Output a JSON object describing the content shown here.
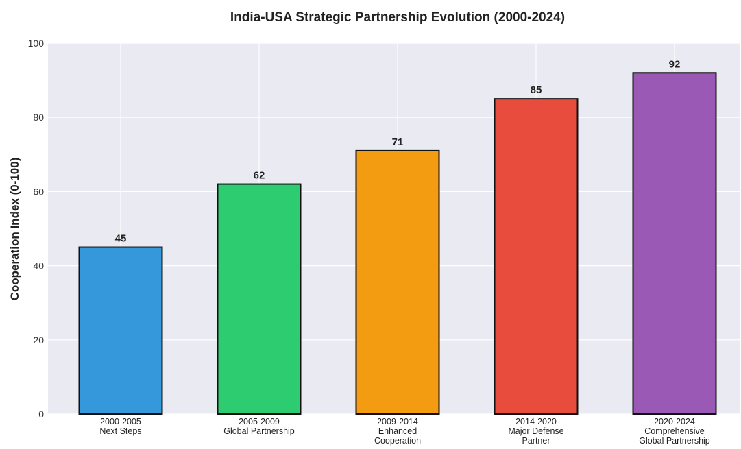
{
  "chart_data": {
    "type": "bar",
    "title": "India-USA Strategic Partnership Evolution (2000-2024)",
    "xlabel": "",
    "ylabel": "Cooperation Index (0-100)",
    "ylim": [
      0,
      100
    ],
    "yticks": [
      "0",
      "20",
      "40",
      "60",
      "80",
      "100"
    ],
    "grid": true,
    "categories": [
      [
        "2000-2005",
        "Next Steps"
      ],
      [
        "2005-2009",
        "Global Partnership"
      ],
      [
        "2009-2014",
        "Enhanced",
        "Cooperation"
      ],
      [
        "2014-2020",
        "Major Defense",
        "Partner"
      ],
      [
        "2020-2024",
        "Comprehensive",
        "Global Partnership"
      ]
    ],
    "values": [
      45,
      62,
      71,
      85,
      92
    ],
    "value_labels": [
      "45",
      "62",
      "71",
      "85",
      "92"
    ],
    "colors": [
      "#3498db",
      "#2ecc71",
      "#f39c12",
      "#e74c3c",
      "#9b59b6"
    ],
    "background": "#eaeaf2",
    "bar_edge_color": "#111111"
  }
}
